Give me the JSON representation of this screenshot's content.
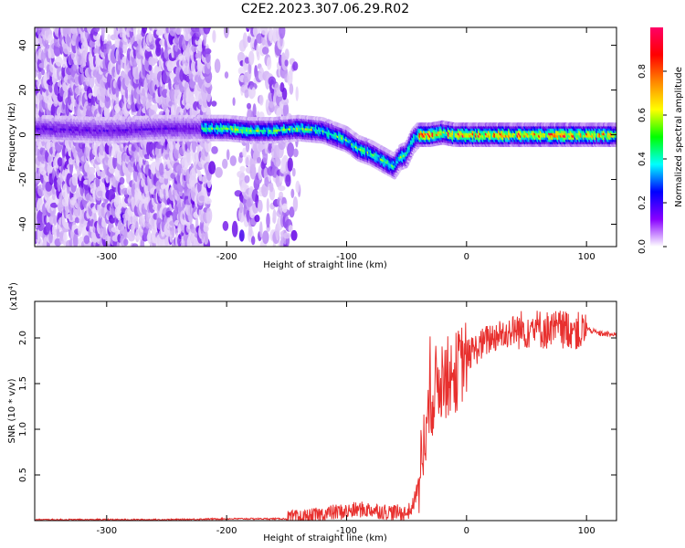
{
  "title": "C2E2.2023.307.06.29.R02",
  "chart_data": [
    {
      "type": "heatmap",
      "xlabel": "Height of straight line (km)",
      "ylabel": "Frequency (Hz)",
      "xlim": [
        -360,
        125
      ],
      "ylim": [
        -50,
        48
      ],
      "xticks": [
        -300,
        -200,
        -100,
        0,
        100
      ],
      "yticks": [
        -40,
        -20,
        0,
        20,
        40
      ],
      "colorbar": {
        "label": "Normalized spectral amplitude",
        "range": [
          0,
          1
        ],
        "ticks": [
          0.0,
          0.2,
          0.4,
          0.6,
          0.8
        ],
        "colors": [
          "#ff0066",
          "#ff0000",
          "#ff8800",
          "#ffff00",
          "#00ff00",
          "#00ffff",
          "#0000ff",
          "#8800ff",
          "#ffffff"
        ]
      },
      "ridge": {
        "x": [
          -360,
          -300,
          -250,
          -220,
          -200,
          -180,
          -160,
          -140,
          -120,
          -100,
          -90,
          -80,
          -70,
          -60,
          -55,
          -50,
          -45,
          -40,
          -30,
          -20,
          -10,
          0,
          20,
          50,
          80,
          100,
          125
        ],
        "y": [
          3,
          2,
          3,
          3,
          3,
          2,
          2,
          3,
          2,
          -2,
          -6,
          -8,
          -11,
          -14,
          -10,
          -9,
          -3,
          0,
          0,
          1,
          0,
          0,
          0,
          0,
          0,
          0,
          0
        ]
      }
    },
    {
      "type": "line",
      "xlabel": "Height of straight line (km)",
      "ylabel": "SNR (10 * v/v)",
      "yexponent": "(x10",
      "yexponent_power": "4",
      "yexponent_close": ")",
      "xlim": [
        -360,
        125
      ],
      "ylim": [
        0,
        2.4
      ],
      "xticks": [
        -300,
        -200,
        -100,
        0,
        100
      ],
      "yticks": [
        0.5,
        1.0,
        1.5,
        2.0
      ],
      "color": "#e8302e",
      "series": [
        {
          "x": [
            -360,
            -300,
            -250,
            -200,
            -150,
            -130,
            -120,
            -110,
            -100,
            -90,
            -80,
            -70,
            -60,
            -50,
            -45,
            -40,
            -35,
            -30,
            -25,
            -20,
            -15,
            -10,
            -5,
            0,
            10,
            20,
            30,
            40,
            50,
            60,
            70,
            80,
            90,
            95,
            100,
            110,
            125
          ],
          "values": [
            0.01,
            0.01,
            0.01,
            0.02,
            0.02,
            0.04,
            0.07,
            0.09,
            0.1,
            0.12,
            0.12,
            0.1,
            0.09,
            0.08,
            0.15,
            0.4,
            0.9,
            1.3,
            1.5,
            1.55,
            1.58,
            1.6,
            1.7,
            1.8,
            1.9,
            2.0,
            2.05,
            2.08,
            2.1,
            2.1,
            2.08,
            2.1,
            2.1,
            2.05,
            2.1,
            2.05,
            2.03
          ]
        }
      ]
    }
  ]
}
